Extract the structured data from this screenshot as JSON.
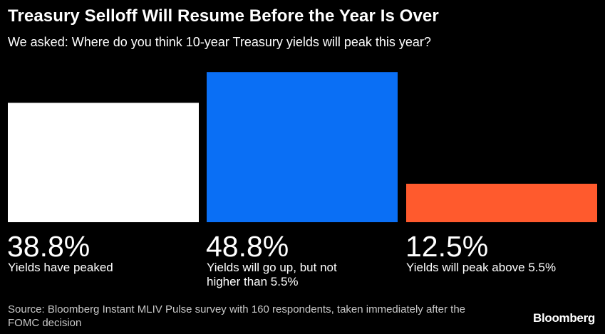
{
  "header": {
    "title": "Treasury Selloff Will Resume Before the Year Is Over",
    "subtitle": "We asked: Where do you think 10-year Treasury yields will peak this year?"
  },
  "chart_data": {
    "type": "bar",
    "title": "Treasury Selloff Will Resume Before the Year Is Over",
    "subtitle": "We asked: Where do you think 10-year Treasury yields will peak this year?",
    "categories": [
      "Yields have peaked",
      "Yields will go up, but not higher than 5.5%",
      "Yields will peak above 5.5%"
    ],
    "values": [
      38.8,
      48.8,
      12.5
    ],
    "value_labels": [
      "38.8%",
      "48.8%",
      "12.5%"
    ],
    "colors": [
      "#ffffff",
      "#0a6ff5",
      "#ff5a2d"
    ],
    "ylim": [
      0,
      50
    ],
    "grid": false,
    "legend": "none"
  },
  "footer": {
    "source": "Source: Bloomberg Instant MLIV Pulse survey with 160 respondents, taken immediately after the FOMC decision",
    "brand": "Bloomberg"
  }
}
